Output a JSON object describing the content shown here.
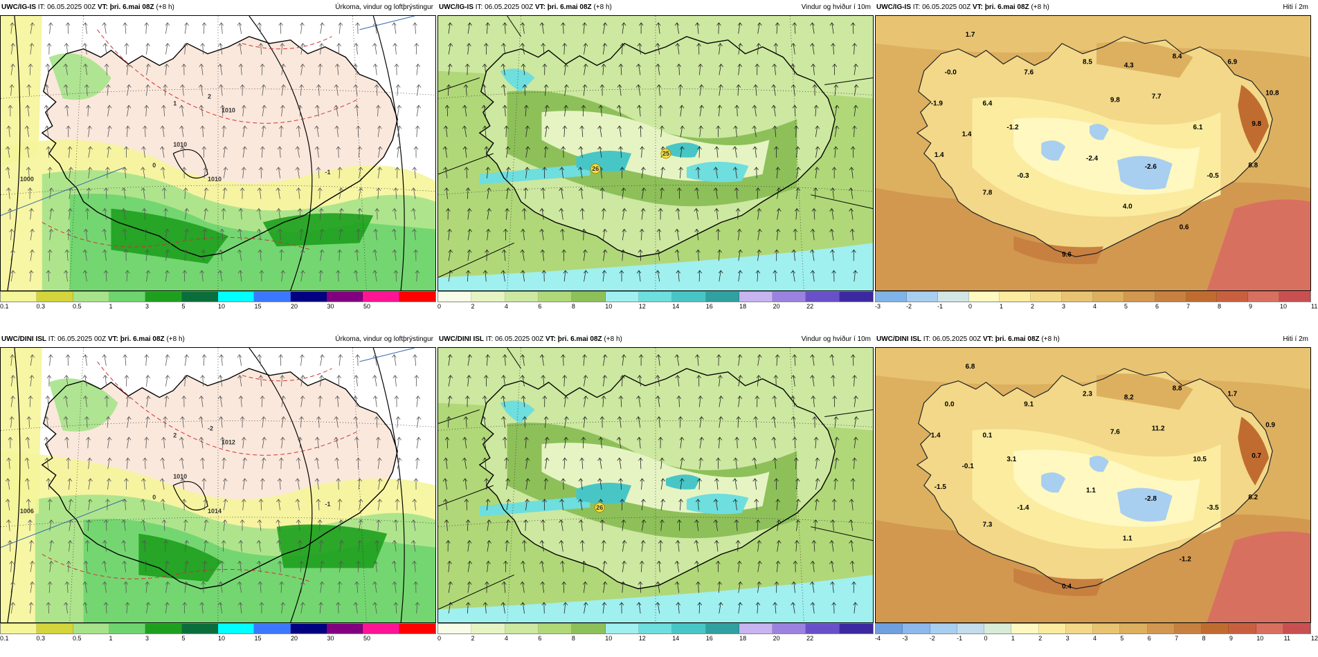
{
  "rows": [
    {
      "model": "UWC/IG-IS",
      "panels": [
        {
          "type": "precip",
          "model_label": "UWC/IG-IS",
          "it_label": "IT: 06.05.2025 00Z",
          "vt_label": "VT: þri. 6.mai 08Z",
          "lead": "(+8 h)",
          "title": "Úrkoma, vindur og loftþrýstingur",
          "colors": [
            "#f5f59a",
            "#d4d43c",
            "#a6e38a",
            "#6ed46e",
            "#1ea01e",
            "#0a6e3c",
            "#00ffff",
            "#3c78ff",
            "#000080",
            "#800080",
            "#ff1493",
            "#ff0000"
          ],
          "ticks": [
            "0.1",
            "0.3",
            "0.5",
            "1",
            "3",
            "5",
            "10",
            "15",
            "20",
            "30",
            "50"
          ],
          "map_labels": [
            {
              "text": "1000"
            },
            {
              "text": "1010"
            },
            {
              "text": "1010"
            },
            {
              "text": "1010"
            },
            {
              "text": "0"
            },
            {
              "text": "2"
            },
            {
              "text": "1"
            },
            {
              "text": "-1"
            }
          ]
        },
        {
          "type": "wind",
          "model_label": "UWC/IG-IS",
          "it_label": "IT: 06.05.2025 00Z",
          "vt_label": "VT: þri. 6.mai 08Z",
          "lead": "(+8 h)",
          "title": "Vindur og hviður í 10m",
          "colors": [
            "#f7fbe8",
            "#e6f4c4",
            "#cde8a0",
            "#b0d878",
            "#8ec05a",
            "#a0f0f0",
            "#6edede",
            "#48c6c6",
            "#30a0a0",
            "#c8b4f0",
            "#9c82e0",
            "#6a50c8",
            "#3c28a0"
          ],
          "ticks": [
            "0",
            "2",
            "4",
            "6",
            "8",
            "10",
            "12",
            "14",
            "16",
            "18",
            "20",
            "22"
          ],
          "gusts": [
            "26",
            "25"
          ]
        },
        {
          "type": "temp",
          "model_label": "UWC/IG-IS",
          "it_label": "IT: 06.05.2025 00Z",
          "vt_label": "VT: þri. 6.mai 08Z",
          "lead": "(+8 h)",
          "title": "Hiti í 2m",
          "colors": [
            "#7eb4e8",
            "#a8cef0",
            "#d2e6e6",
            "#fff8c0",
            "#fbeca0",
            "#f2d888",
            "#e8c472",
            "#ddb060",
            "#d29850",
            "#c88040",
            "#c06c30",
            "#c86040",
            "#d87060",
            "#c85050"
          ],
          "ticks": [
            "-3",
            "-2",
            "-1",
            "0",
            "1",
            "2",
            "3",
            "4",
            "5",
            "6",
            "7",
            "8",
            "9",
            "10",
            "11"
          ],
          "temps": [
            "1.7",
            "-0.0",
            "7.6",
            "8.5",
            "4.3",
            "8.4",
            "6.9",
            "-1.9",
            "6.4",
            "9.8",
            "7.7",
            "10.8",
            "1.4",
            "-1.2",
            "6.1",
            "9.8",
            "1.4",
            "-2.4",
            "-0.3",
            "-2.6",
            "-0.5",
            "8.8",
            "7.8",
            "4.0",
            "0.6",
            "9.6"
          ]
        }
      ]
    },
    {
      "model": "UWC/DINI ISL",
      "panels": [
        {
          "type": "precip",
          "model_label": "UWC/DINI ISL",
          "it_label": "IT: 06.05.2025 00Z",
          "vt_label": "VT: þri. 6.mai 08Z",
          "lead": "(+8 h)",
          "title": "Úrkoma, vindur og loftþrýstingur",
          "colors": [
            "#f5f59a",
            "#d4d43c",
            "#a6e38a",
            "#6ed46e",
            "#1ea01e",
            "#0a6e3c",
            "#00ffff",
            "#3c78ff",
            "#000080",
            "#800080",
            "#ff1493",
            "#ff0000"
          ],
          "ticks": [
            "0.1",
            "0.3",
            "0.5",
            "1",
            "3",
            "5",
            "10",
            "15",
            "20",
            "30",
            "50"
          ],
          "map_labels": [
            {
              "text": "1006"
            },
            {
              "text": "1010"
            },
            {
              "text": "1012"
            },
            {
              "text": "1014"
            },
            {
              "text": "0"
            },
            {
              "text": "-2"
            },
            {
              "text": "2"
            },
            {
              "text": "-1"
            }
          ]
        },
        {
          "type": "wind",
          "model_label": "UWC/DINI ISL",
          "it_label": "IT: 06.05.2025 00Z",
          "vt_label": "VT: þri. 6.mai 08Z",
          "lead": "(+8 h)",
          "title": "Vindur og hviður í 10m",
          "colors": [
            "#f7fbe8",
            "#e6f4c4",
            "#cde8a0",
            "#b0d878",
            "#8ec05a",
            "#a0f0f0",
            "#6edede",
            "#48c6c6",
            "#30a0a0",
            "#c8b4f0",
            "#9c82e0",
            "#6a50c8",
            "#3c28a0"
          ],
          "ticks": [
            "0",
            "2",
            "4",
            "6",
            "8",
            "10",
            "12",
            "14",
            "16",
            "18",
            "20",
            "22"
          ],
          "gusts": [
            "26"
          ]
        },
        {
          "type": "temp",
          "model_label": "UWC/DINI ISL",
          "it_label": "IT: 06.05.2025 00Z",
          "vt_label": "VT: þri. 6.mai 08Z",
          "lead": "(+8 h)",
          "title": "Hiti í 2m",
          "colors": [
            "#6ea0e0",
            "#8cb8ec",
            "#a8cef0",
            "#c4dcec",
            "#d8ecd8",
            "#fff8c0",
            "#fbeca0",
            "#f2d888",
            "#e8c472",
            "#ddb060",
            "#d29850",
            "#c88040",
            "#c06c30",
            "#c86040",
            "#d87060",
            "#c85050"
          ],
          "ticks": [
            "-4",
            "-3",
            "-2",
            "-1",
            "0",
            "1",
            "2",
            "3",
            "4",
            "5",
            "6",
            "7",
            "8",
            "9",
            "10",
            "11",
            "12"
          ],
          "temps": [
            "6.8",
            "0.0",
            "9.1",
            "2.3",
            "8.2",
            "8.8",
            "1.7",
            "1.4",
            "0.1",
            "7.6",
            "11.2",
            "0.9",
            "-0.1",
            "3.1",
            "10.5",
            "0.7",
            "-1.5",
            "1.1",
            "-1.4",
            "-2.8",
            "-3.5",
            "8.2",
            "7.3",
            "1.1",
            "-1.2",
            "0.4"
          ]
        }
      ]
    }
  ]
}
